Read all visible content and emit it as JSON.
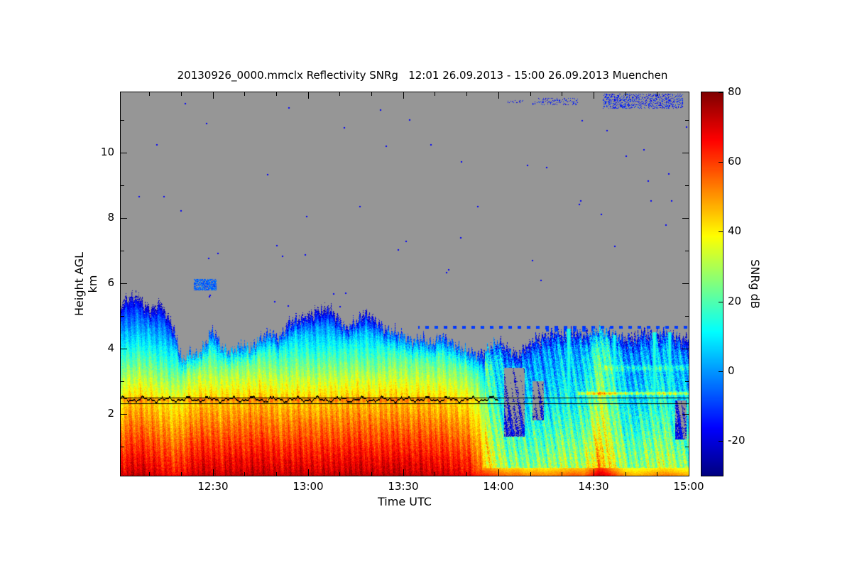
{
  "chart_data": {
    "type": "heatmap",
    "title": "20130926_0000.mmclx Reflectivity SNRg   12:01 26.09.2013 - 15:00 26.09.2013 Muenchen",
    "xlabel": "Time UTC",
    "ylabel": "Height AGL km",
    "colorbar_label": "SNRg dB",
    "station": "Muenchen",
    "time_span": "12:01 26.09.2013 - 15:00 26.09.2013",
    "x_range_hours": [
      12.0167,
      15.0
    ],
    "y_range_km": [
      0.1,
      11.85
    ],
    "value_range_db": [
      -30,
      80
    ],
    "detection_threshold_db": -26,
    "colormap": "jet",
    "no_signal_color": "#969696",
    "x_ticks": [
      {
        "value": 12.5,
        "label": "12:30"
      },
      {
        "value": 13.0,
        "label": "13:00"
      },
      {
        "value": 13.5,
        "label": "13:30"
      },
      {
        "value": 14.0,
        "label": "14:00"
      },
      {
        "value": 14.5,
        "label": "14:30"
      },
      {
        "value": 15.0,
        "label": "15:00"
      }
    ],
    "x_minor_step_hours": 0.166667,
    "y_ticks": [
      {
        "value": 2,
        "label": "2"
      },
      {
        "value": 4,
        "label": "4"
      },
      {
        "value": 6,
        "label": "6"
      },
      {
        "value": 8,
        "label": "8"
      },
      {
        "value": 10,
        "label": "10"
      }
    ],
    "y_minor_values": [
      1,
      3,
      5,
      7,
      9,
      11
    ],
    "colorbar_ticks": [
      {
        "value": 80,
        "label": "80"
      },
      {
        "value": 60,
        "label": "60"
      },
      {
        "value": 40,
        "label": "40"
      },
      {
        "value": 20,
        "label": "20"
      },
      {
        "value": 0,
        "label": "0"
      },
      {
        "value": -20,
        "label": "-20"
      }
    ],
    "profile_columns": [
      [
        12.02,
        5.5,
        70,
        70
      ],
      [
        12.07,
        5.9,
        73,
        73
      ],
      [
        12.12,
        5.7,
        74,
        74
      ],
      [
        12.17,
        5.2,
        72,
        72
      ],
      [
        12.22,
        5.6,
        70,
        70
      ],
      [
        12.27,
        5.0,
        68,
        68
      ],
      [
        12.31,
        4.3,
        66,
        66
      ],
      [
        12.34,
        3.6,
        68,
        68
      ],
      [
        12.38,
        3.9,
        71,
        71
      ],
      [
        12.42,
        3.8,
        73,
        73
      ],
      [
        12.46,
        4.1,
        74,
        74
      ],
      [
        12.5,
        4.6,
        73,
        73
      ],
      [
        12.55,
        4.0,
        72,
        72
      ],
      [
        12.6,
        3.9,
        74,
        74
      ],
      [
        12.65,
        4.1,
        73,
        73
      ],
      [
        12.7,
        4.0,
        74,
        74
      ],
      [
        12.75,
        4.3,
        75,
        75
      ],
      [
        12.8,
        4.5,
        74,
        74
      ],
      [
        12.85,
        4.3,
        72,
        72
      ],
      [
        12.9,
        4.8,
        73,
        73
      ],
      [
        12.95,
        4.9,
        74,
        74
      ],
      [
        13.0,
        5.0,
        73,
        73
      ],
      [
        13.05,
        5.2,
        72,
        72
      ],
      [
        13.1,
        5.3,
        74,
        74
      ],
      [
        13.15,
        5.0,
        73,
        73
      ],
      [
        13.2,
        4.6,
        74,
        74
      ],
      [
        13.25,
        4.8,
        75,
        75
      ],
      [
        13.3,
        5.1,
        74,
        74
      ],
      [
        13.35,
        4.9,
        73,
        73
      ],
      [
        13.4,
        4.6,
        74,
        74
      ],
      [
        13.45,
        4.5,
        75,
        75
      ],
      [
        13.5,
        4.4,
        74,
        74
      ],
      [
        13.55,
        4.2,
        73,
        73
      ],
      [
        13.6,
        4.3,
        74,
        74
      ],
      [
        13.65,
        4.1,
        72,
        72
      ],
      [
        13.7,
        4.4,
        73,
        73
      ],
      [
        13.75,
        4.2,
        71,
        71
      ],
      [
        13.8,
        4.0,
        70,
        70
      ],
      [
        13.85,
        3.9,
        68,
        68
      ],
      [
        13.9,
        3.8,
        64,
        60
      ],
      [
        13.95,
        4.0,
        62,
        44
      ],
      [
        14.0,
        4.2,
        58,
        36
      ],
      [
        14.05,
        4.0,
        55,
        30
      ],
      [
        14.1,
        3.8,
        56,
        30
      ],
      [
        14.15,
        4.1,
        52,
        28
      ],
      [
        14.2,
        4.3,
        54,
        30
      ],
      [
        14.25,
        4.4,
        52,
        30
      ],
      [
        14.3,
        4.5,
        54,
        32
      ],
      [
        14.35,
        4.4,
        56,
        34
      ],
      [
        14.4,
        4.5,
        58,
        32
      ],
      [
        14.45,
        4.4,
        56,
        34
      ],
      [
        14.5,
        4.5,
        66,
        44
      ],
      [
        14.53,
        4.6,
        74,
        52
      ],
      [
        14.57,
        4.5,
        68,
        46
      ],
      [
        14.62,
        4.4,
        58,
        38
      ],
      [
        14.67,
        4.3,
        50,
        30
      ],
      [
        14.72,
        4.4,
        48,
        28
      ],
      [
        14.77,
        4.5,
        50,
        32
      ],
      [
        14.82,
        4.4,
        52,
        34
      ],
      [
        14.87,
        4.5,
        54,
        36
      ],
      [
        14.92,
        4.4,
        52,
        32
      ],
      [
        14.96,
        4.3,
        50,
        30
      ],
      [
        15.0,
        4.3,
        48,
        28
      ]
    ],
    "regimes": [
      {
        "t_max": 13.93,
        "lapse_low": 12,
        "lapse_high": 20,
        "taper_depth_km": 0.6,
        "taper_db": 18,
        "noise_db": 5,
        "streak_db": 7,
        "streak_tilt": 2
      },
      {
        "t_max": 15.1,
        "lapse_low": 9,
        "lapse_high": 6,
        "taper_depth_km": 0.6,
        "taper_db": 20,
        "noise_db": 9,
        "streak_db": 12,
        "streak_tilt": 7
      }
    ],
    "features": {
      "melting_layer": {
        "straight_lines": [
          {
            "h": 2.49,
            "t0": 12.0167,
            "t1": 15.0
          },
          {
            "h": 2.31,
            "t0": 12.0167,
            "t1": 15.0
          }
        ],
        "wiggly": {
          "h": 2.46,
          "amp": 0.1,
          "t0": 12.0167,
          "t1": 14.0
        }
      },
      "dash_lines": [
        {
          "t0": 13.58,
          "t1": 15.0,
          "h": 4.65,
          "db": -10
        },
        {
          "t0": 14.25,
          "t1": 14.5,
          "h": 4.56,
          "db": -10
        }
      ],
      "blob": {
        "t0": 12.4,
        "t1": 12.52,
        "h0": 5.78,
        "h1": 6.12,
        "db": -6
      },
      "cirrus": [
        {
          "t0": 14.55,
          "t1": 14.97,
          "h0": 11.35,
          "h1": 11.8,
          "density": 0.3,
          "db": -14
        },
        {
          "t0": 14.18,
          "t1": 14.42,
          "h0": 11.45,
          "h1": 11.68,
          "density": 0.18,
          "db": -15
        },
        {
          "t0": 14.05,
          "t1": 14.13,
          "h0": 11.5,
          "h1": 11.62,
          "density": 0.15,
          "db": -15
        }
      ],
      "speckles": {
        "count": 55,
        "db": -17
      },
      "gaps": [
        {
          "t0": 14.03,
          "t1": 14.14,
          "h0": 1.3,
          "h1": 3.4
        },
        {
          "t0": 14.18,
          "t1": 14.24,
          "h0": 1.8,
          "h1": 3.0
        },
        {
          "t0": 14.93,
          "t1": 14.99,
          "h0": 1.2,
          "h1": 2.4
        }
      ],
      "bright_columns": [
        {
          "t": 14.37,
          "w": 0.012,
          "h_top": 4.6,
          "db": 16
        },
        {
          "t": 14.61,
          "w": 0.01,
          "h_top": 4.4,
          "db": 15
        },
        {
          "t": 14.82,
          "w": 0.012,
          "h_top": 4.5,
          "db": 17
        },
        {
          "t": 14.9,
          "w": 0.01,
          "h_top": 4.5,
          "db": 16
        }
      ],
      "bands": [
        {
          "t0": 12.02,
          "t1": 13.95,
          "h": 2.42,
          "half": 0.1,
          "db": 7
        },
        {
          "t0": 14.42,
          "t1": 15.0,
          "h": 2.62,
          "half": 0.07,
          "db": 22
        },
        {
          "t0": 14.55,
          "t1": 15.0,
          "h": 3.4,
          "half": 0.12,
          "db": 10
        }
      ]
    }
  }
}
